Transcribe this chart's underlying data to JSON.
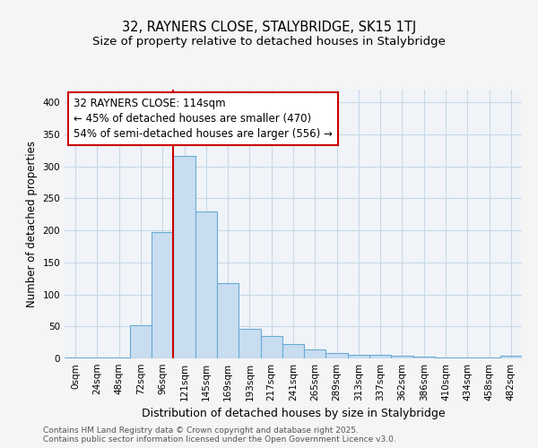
{
  "title_line1": "32, RAYNERS CLOSE, STALYBRIDGE, SK15 1TJ",
  "title_line2": "Size of property relative to detached houses in Stalybridge",
  "xlabel": "Distribution of detached houses by size in Stalybridge",
  "ylabel": "Number of detached properties",
  "bar_labels": [
    "0sqm",
    "24sqm",
    "48sqm",
    "72sqm",
    "96sqm",
    "121sqm",
    "145sqm",
    "169sqm",
    "193sqm",
    "217sqm",
    "241sqm",
    "265sqm",
    "289sqm",
    "313sqm",
    "337sqm",
    "362sqm",
    "386sqm",
    "410sqm",
    "434sqm",
    "458sqm",
    "482sqm"
  ],
  "bar_values": [
    1,
    1,
    1,
    52,
    197,
    317,
    229,
    117,
    46,
    35,
    23,
    14,
    9,
    6,
    5,
    4,
    3,
    2,
    1,
    1,
    4
  ],
  "bar_color": "#c8ddf0",
  "bar_edge_color": "#6aaad4",
  "vline_x": 4.5,
  "vline_color": "#cc0000",
  "annotation_text": "32 RAYNERS CLOSE: 114sqm\n← 45% of detached houses are smaller (470)\n54% of semi-detached houses are larger (556) →",
  "annotation_box_color": "white",
  "annotation_box_edge": "#cc0000",
  "ylim": [
    0,
    420
  ],
  "yticks": [
    0,
    50,
    100,
    150,
    200,
    250,
    300,
    350,
    400
  ],
  "background_color": "#f5f5f5",
  "plot_bg_color": "#f0f4f8",
  "grid_color": "#c8d8e8",
  "footer_text": "Contains HM Land Registry data © Crown copyright and database right 2025.\nContains public sector information licensed under the Open Government Licence v3.0.",
  "title_fontsize": 10.5,
  "subtitle_fontsize": 9.5,
  "xlabel_fontsize": 9,
  "ylabel_fontsize": 8.5,
  "tick_fontsize": 7.5,
  "annotation_fontsize": 8.5,
  "footer_fontsize": 6.5
}
